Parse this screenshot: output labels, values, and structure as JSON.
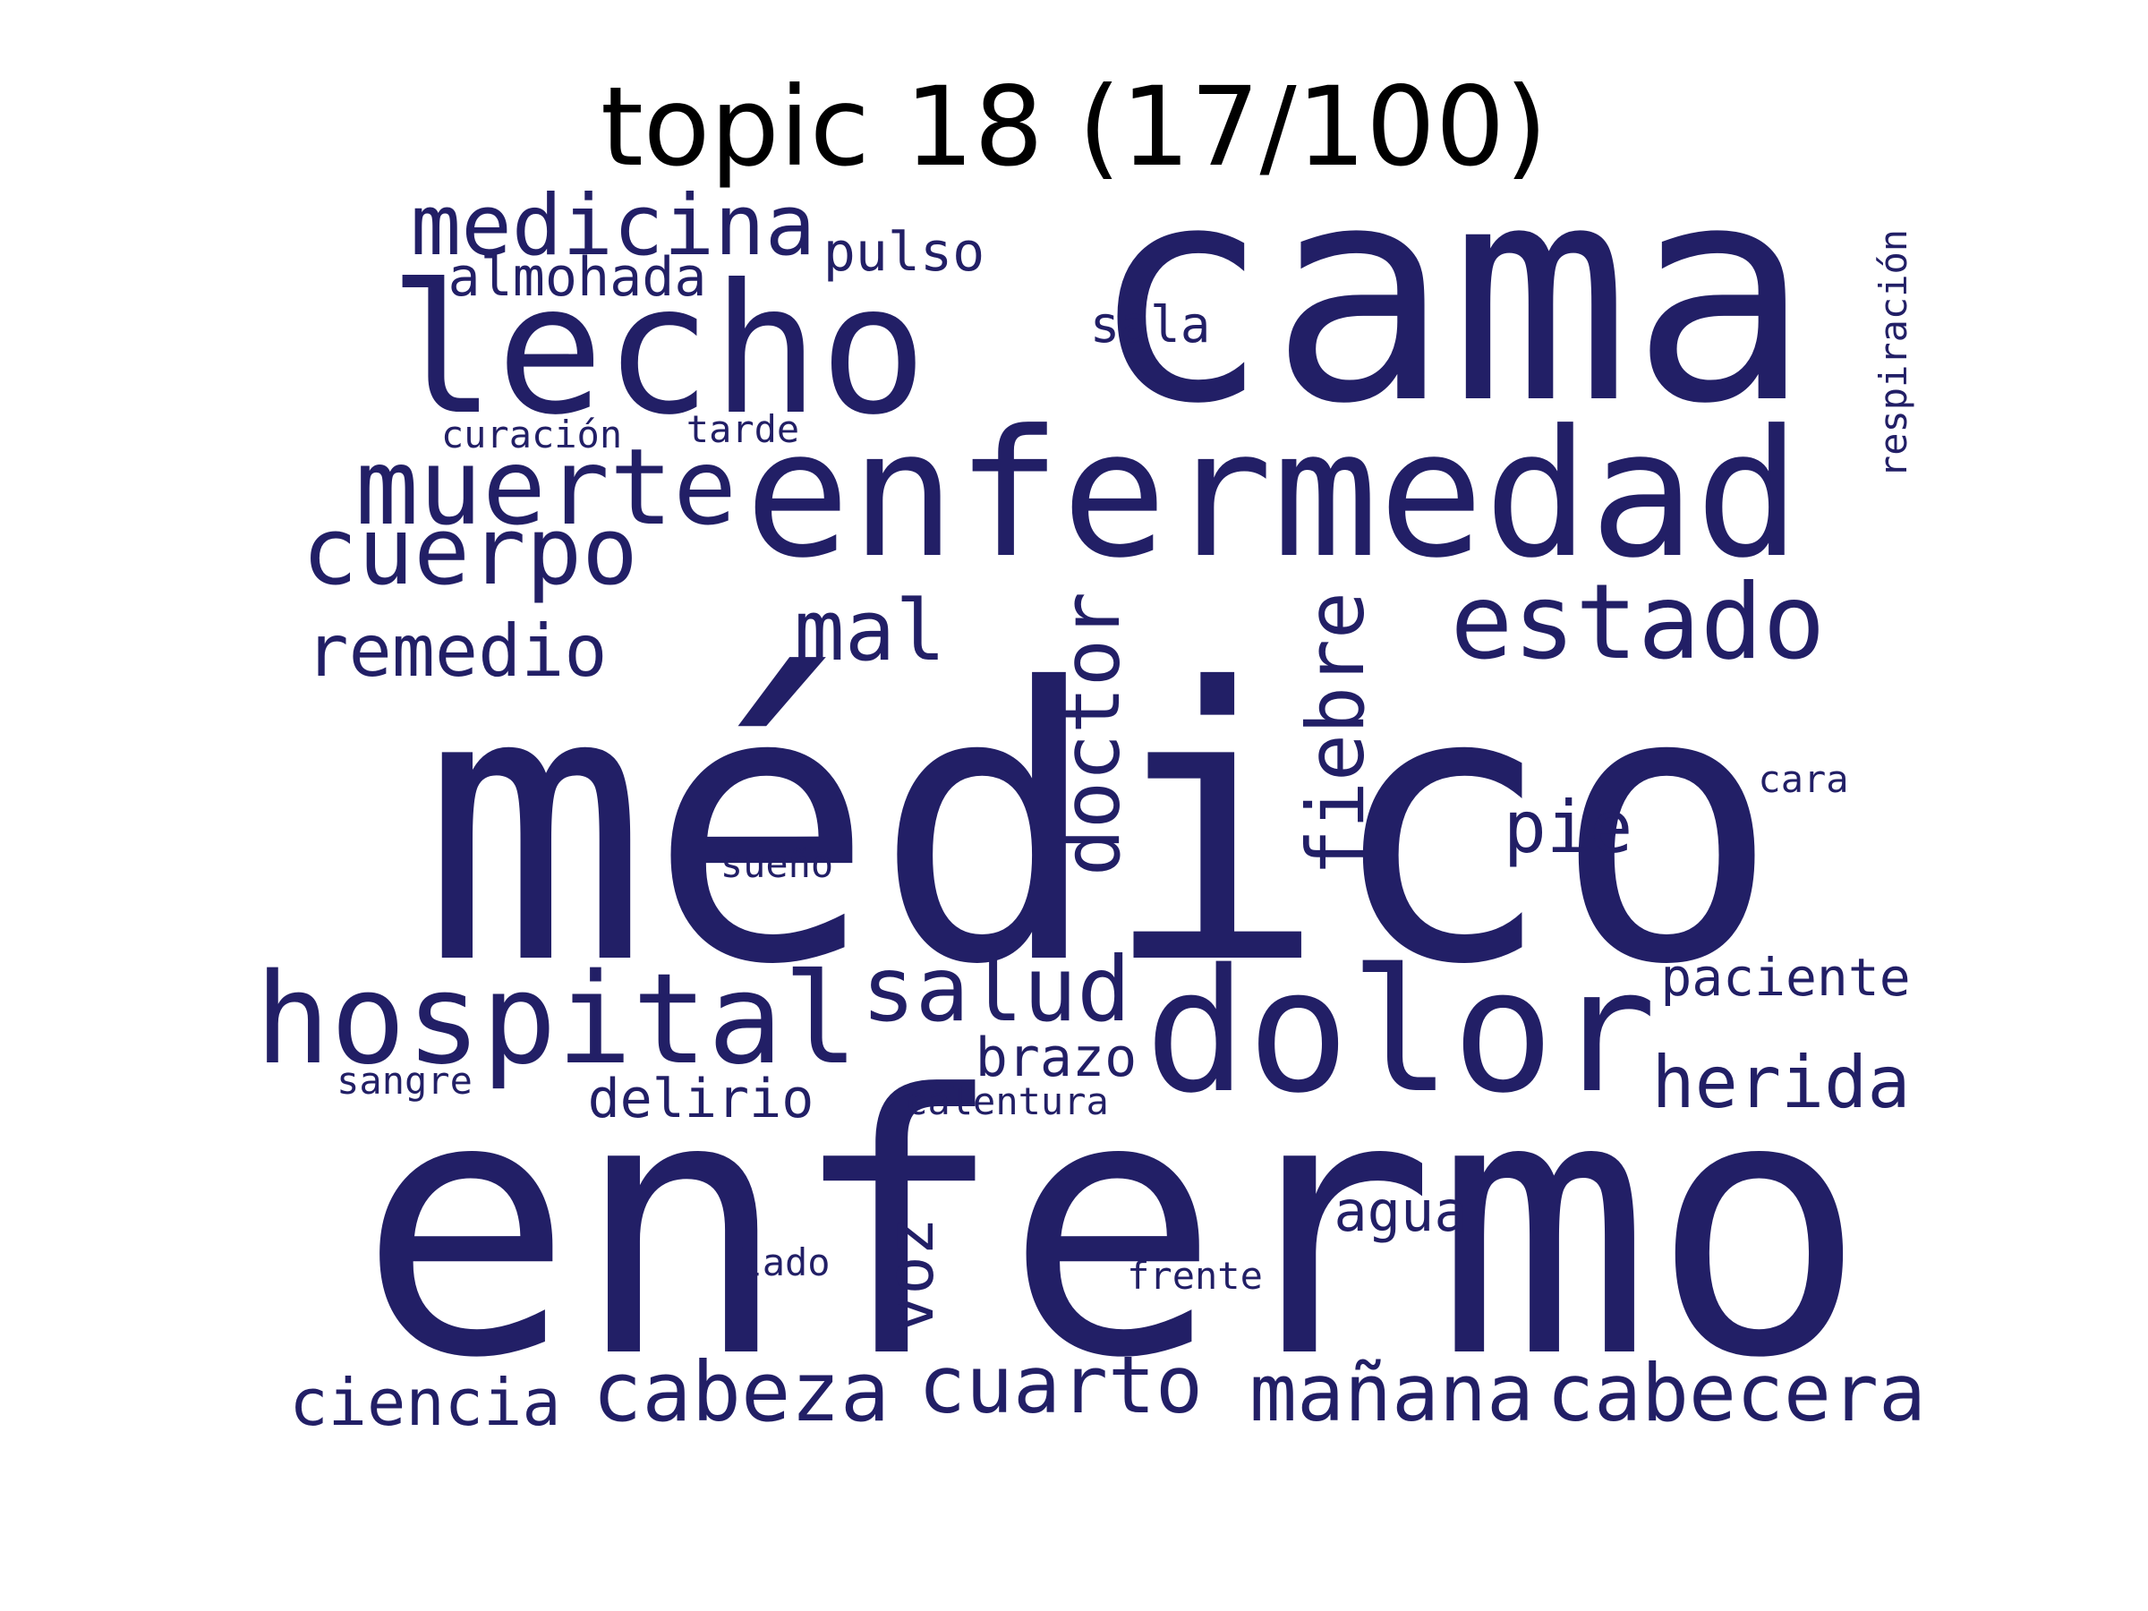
{
  "title": "topic 18 (17/100)",
  "word_color": "#221F66",
  "words": [
    "médico",
    "enfermo",
    "cama",
    "enfermedad",
    "lecho",
    "dolor",
    "muerte",
    "medicina",
    "cuerpo",
    "estado",
    "hospital",
    "doctor",
    "fiebre",
    "remedio",
    "mal",
    "salud",
    "herida",
    "pie",
    "mañana",
    "cabecera",
    "cabeza",
    "cuarto",
    "ciencia",
    "pulso",
    "almohada",
    "sala",
    "respiración",
    "curación",
    "tarde",
    "paciente",
    "brazo",
    "delirio",
    "calentura",
    "sangre",
    "voz",
    "agua",
    "cara",
    "sueño",
    "lado",
    "frente"
  ]
}
